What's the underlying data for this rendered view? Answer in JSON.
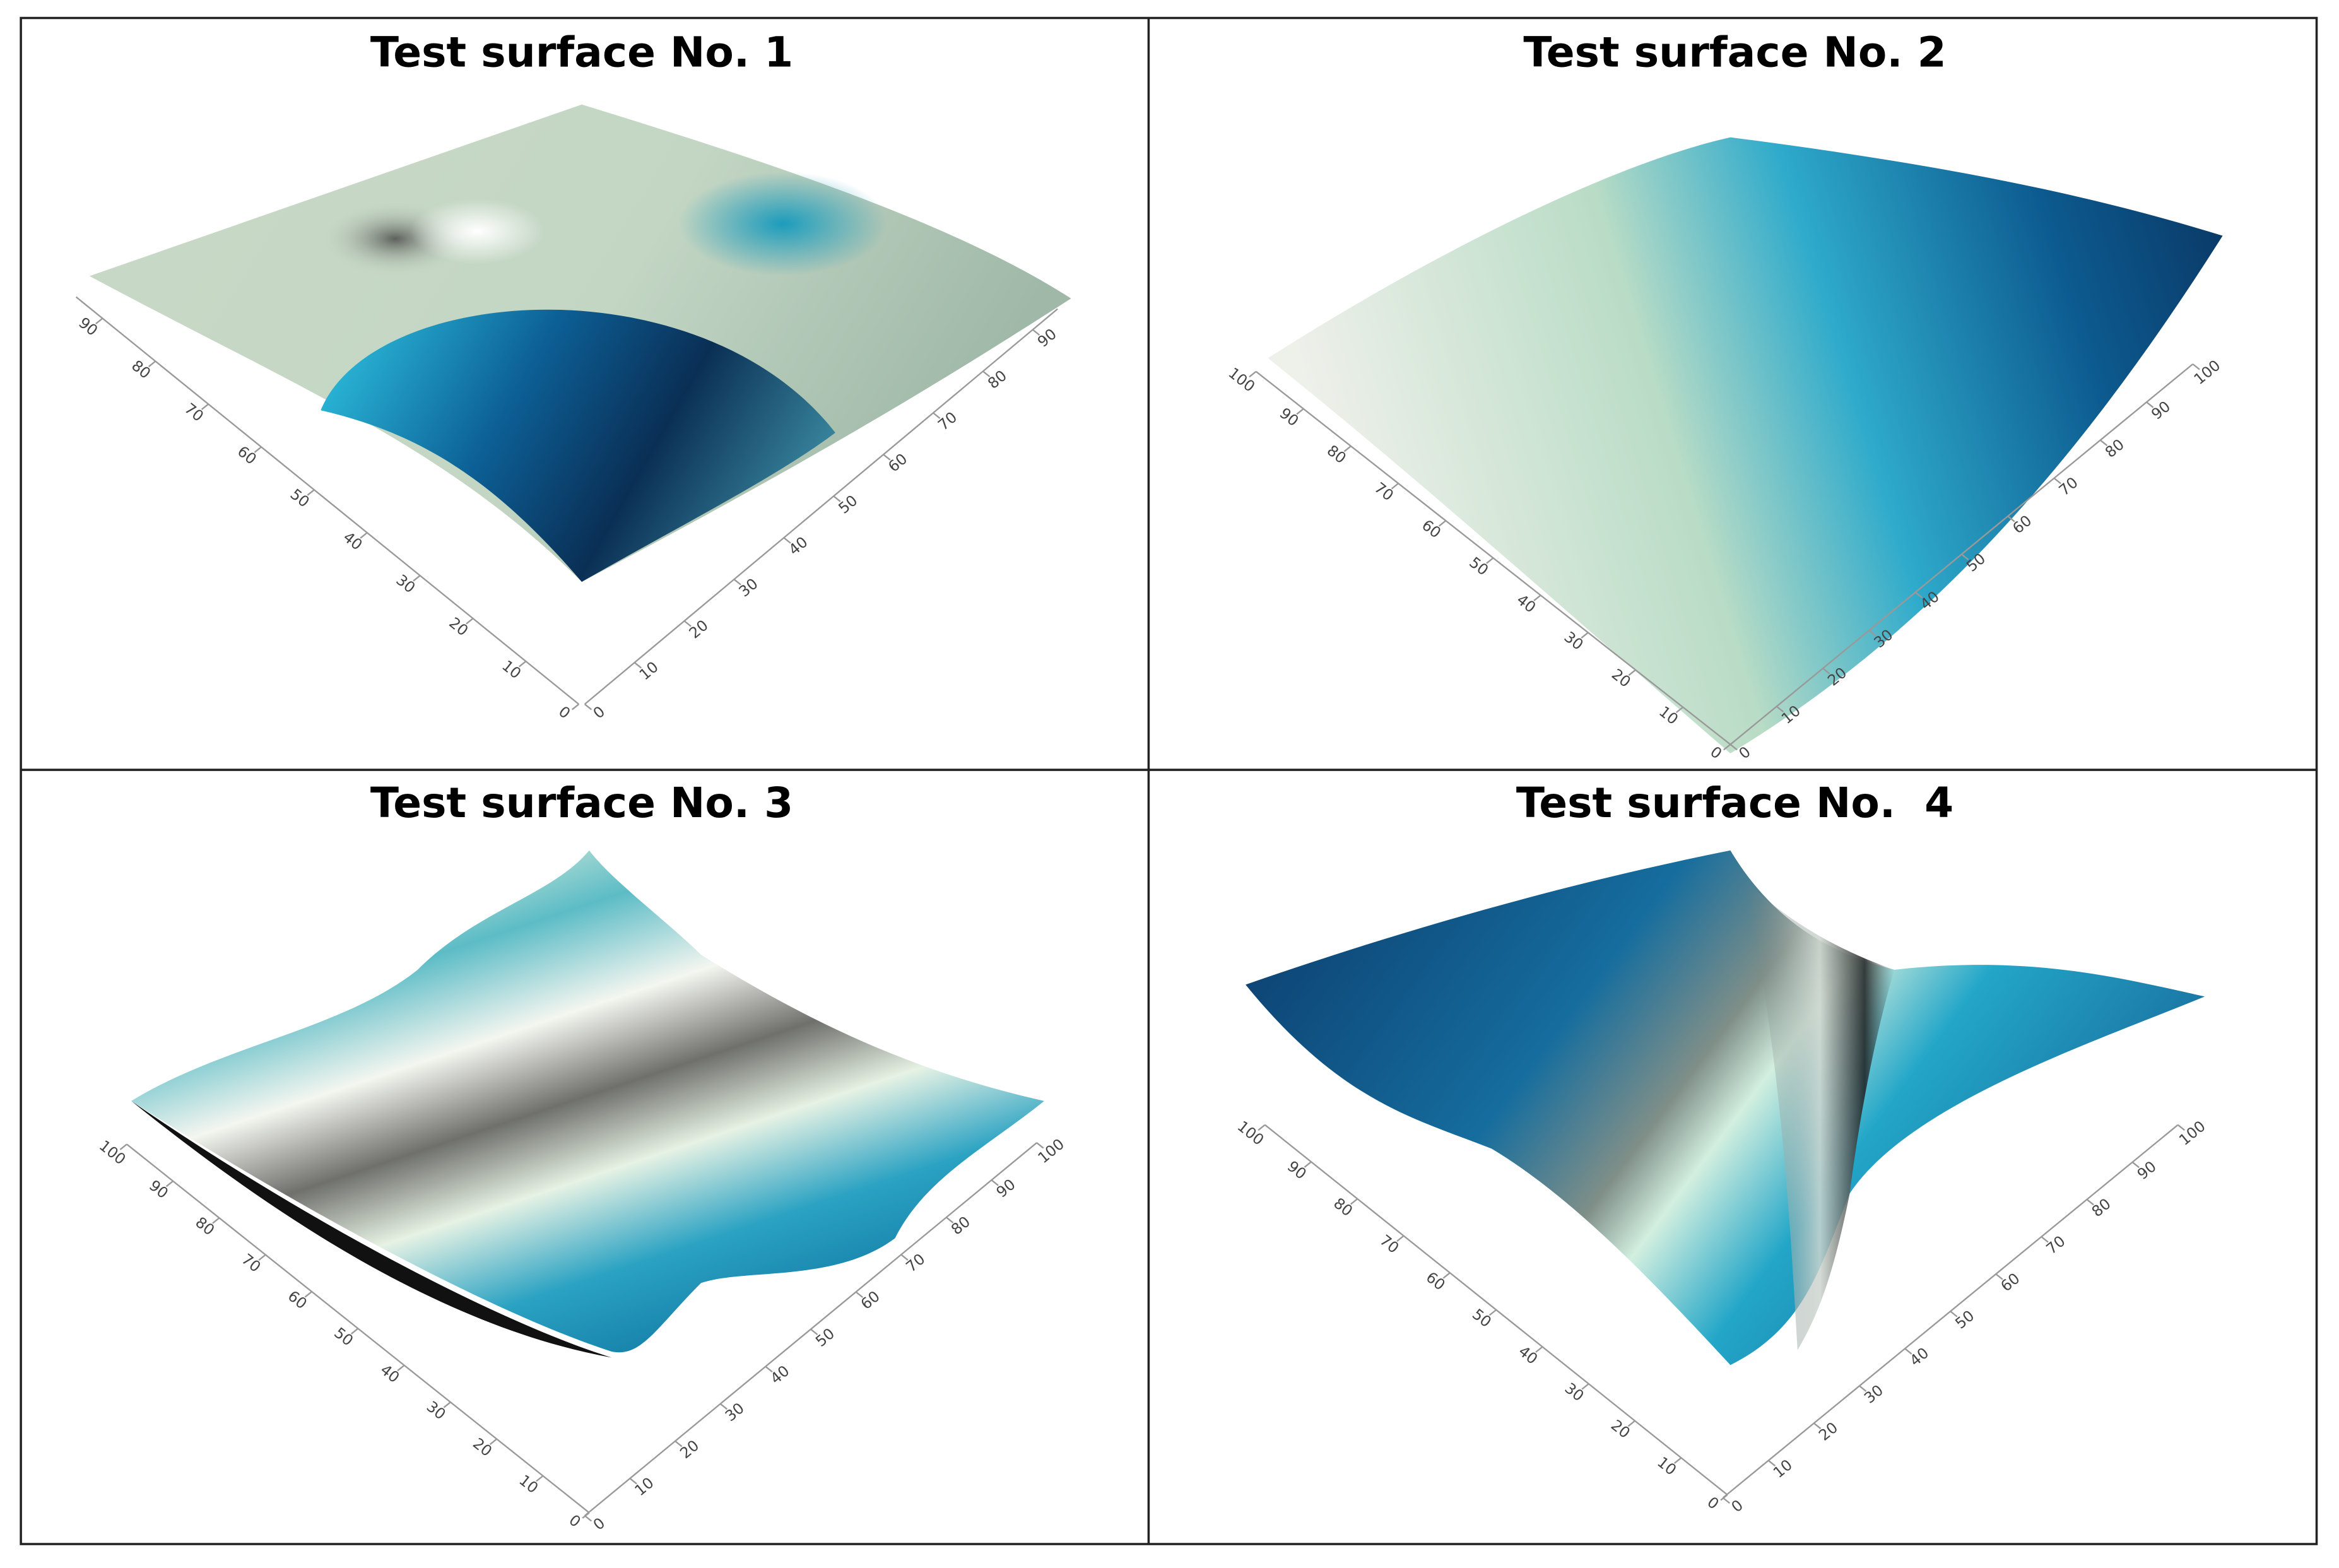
{
  "chart_data": [
    {
      "type": "surface",
      "title": "Test surface No. 1",
      "xlim": [
        0,
        95
      ],
      "ylim": [
        0,
        95
      ],
      "xticks": [
        0,
        10,
        20,
        30,
        40,
        50,
        60,
        70,
        80,
        90
      ],
      "yticks": [
        0,
        10,
        20,
        30,
        40,
        50,
        60,
        70,
        80,
        90
      ]
    },
    {
      "type": "surface",
      "title": "Test surface No. 2",
      "xlim": [
        0,
        100
      ],
      "ylim": [
        0,
        100
      ],
      "xticks": [
        0,
        10,
        20,
        30,
        40,
        50,
        60,
        70,
        80,
        90,
        100
      ],
      "yticks": [
        0,
        10,
        20,
        30,
        40,
        50,
        60,
        70,
        80,
        90,
        100
      ]
    },
    {
      "type": "surface",
      "title": "Test surface No. 3",
      "xlim": [
        0,
        100
      ],
      "ylim": [
        0,
        100
      ],
      "xticks": [
        0,
        10,
        20,
        30,
        40,
        50,
        60,
        70,
        80,
        90,
        100
      ],
      "yticks": [
        0,
        10,
        20,
        30,
        40,
        50,
        60,
        70,
        80,
        90,
        100
      ]
    },
    {
      "type": "surface",
      "title": "Test surface No.  4",
      "xlim": [
        0,
        100
      ],
      "ylim": [
        0,
        100
      ],
      "xticks": [
        0,
        10,
        20,
        30,
        40,
        50,
        60,
        70,
        80,
        90,
        100
      ],
      "yticks": [
        0,
        10,
        20,
        30,
        40,
        50,
        60,
        70,
        80,
        90,
        100
      ]
    }
  ]
}
